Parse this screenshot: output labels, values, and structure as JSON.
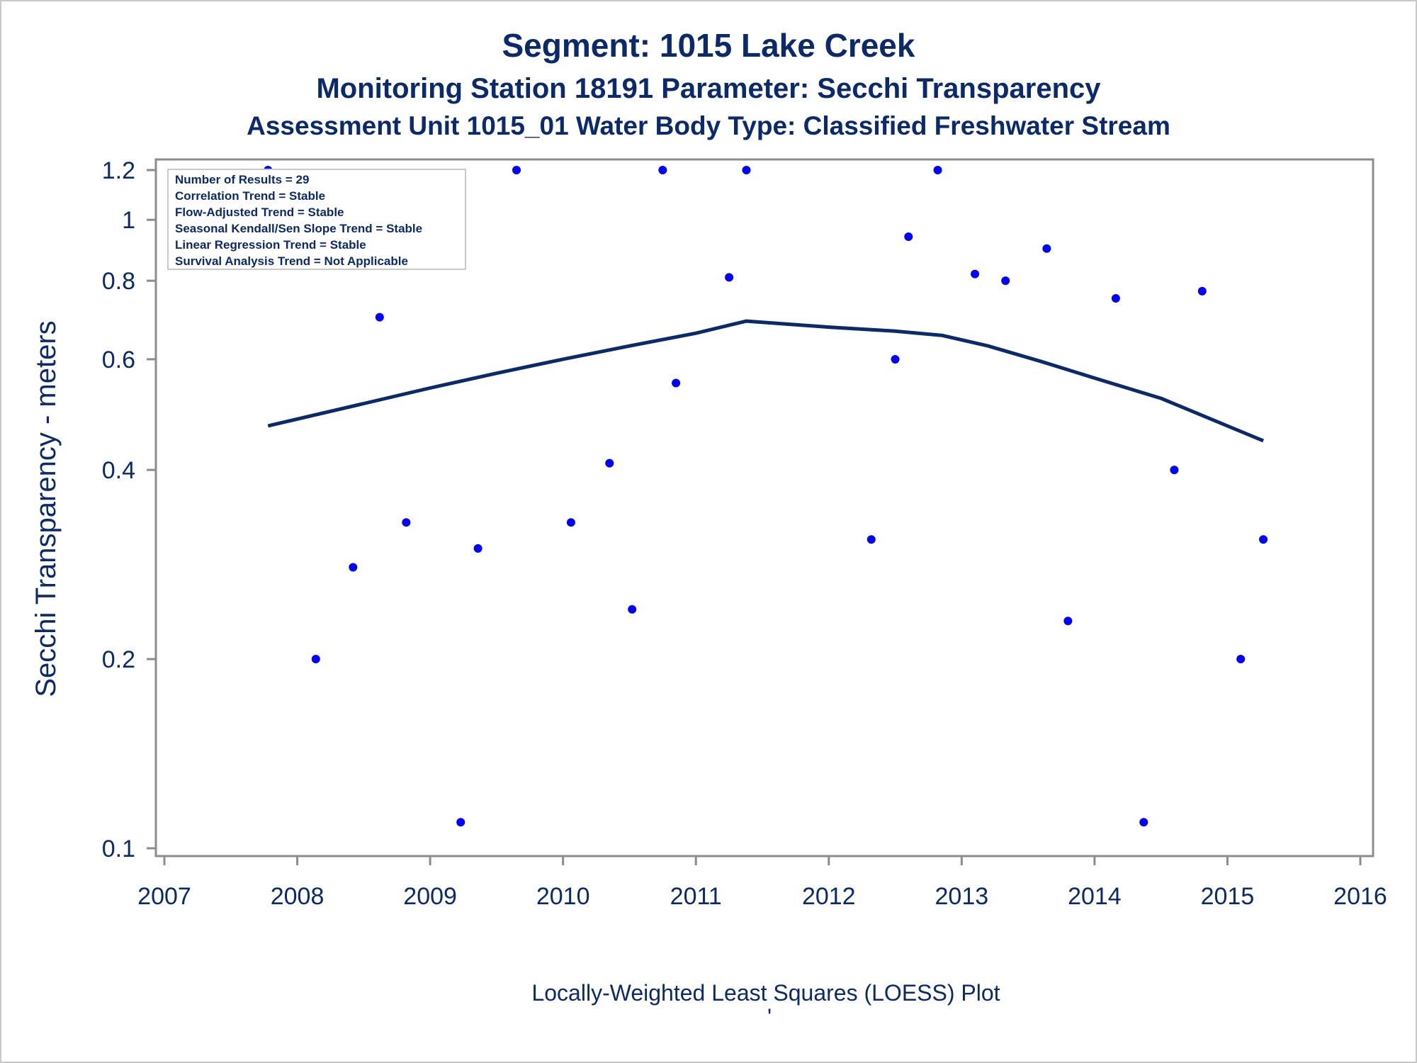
{
  "chart_data": {
    "type": "scatter",
    "title": "Segment: 1015  Lake Creek",
    "subtitle": "Monitoring Station 18191 Parameter: Secchi Transparency",
    "subtitle2": "Assessment Unit 1015_01   Water Body Type: Classified Freshwater Stream",
    "xlabel": "",
    "ylabel": "Secchi Transparency - meters",
    "footnote": "Locally-Weighted Least Squares (LOESS) Plot",
    "footnote_mark": "'",
    "y_scale": "log",
    "xlim": [
      2007,
      2016
    ],
    "ylim": [
      0.1,
      1.2
    ],
    "x_ticks": [
      2007,
      2008,
      2009,
      2010,
      2011,
      2012,
      2013,
      2014,
      2015,
      2016
    ],
    "x_tick_labels": [
      "2007",
      "2008",
      "2009",
      "2010",
      "2011",
      "2012",
      "2013",
      "2014",
      "2015",
      "2016"
    ],
    "y_ticks": [
      0.1,
      0.2,
      0.4,
      0.6,
      0.8,
      1.0,
      1.2
    ],
    "y_tick_labels": [
      "0.1",
      "0.2",
      "0.4",
      "0.6",
      "0.8",
      "1",
      "1.2"
    ],
    "grid": false,
    "legend_box": {
      "placement": "top-left",
      "lines": [
        "Number of Results = 29",
        "Correlation Trend = Stable",
        "Flow-Adjusted Trend = Stable",
        "Seasonal Kendall/Sen Slope Trend = Stable",
        "Linear Regression Trend = Stable",
        "Survival Analysis Trend = Not Applicable"
      ]
    },
    "colors": {
      "points": "#0000ff",
      "loess": "#0b2a6b",
      "text": "#0b2a6b",
      "frame": "#8c8c8c"
    },
    "series": [
      {
        "type": "scatter",
        "x": [
          2007.78,
          2008.14,
          2008.42,
          2008.62,
          2008.82,
          2009.23,
          2009.36,
          2009.65,
          2010.06,
          2010.35,
          2010.52,
          2010.75,
          2010.85,
          2011.25,
          2011.38,
          2012.32,
          2012.5,
          2012.6,
          2012.82,
          2013.1,
          2013.33,
          2013.64,
          2013.8,
          2014.16,
          2014.37,
          2014.6,
          2014.81,
          2015.1,
          2015.27
        ],
        "y": [
          1.2,
          0.2,
          0.28,
          0.7,
          0.33,
          0.11,
          0.3,
          1.2,
          0.33,
          0.41,
          0.24,
          1.2,
          0.55,
          0.81,
          1.2,
          0.31,
          0.6,
          0.94,
          1.2,
          0.82,
          0.8,
          0.9,
          0.23,
          0.75,
          0.11,
          0.4,
          0.77,
          0.2,
          0.31
        ]
      },
      {
        "type": "line",
        "x": [
          2007.78,
          2008.5,
          2009.0,
          2009.5,
          2010.0,
          2010.5,
          2011.0,
          2011.38,
          2012.0,
          2012.5,
          2012.85,
          2013.2,
          2013.6,
          2014.0,
          2014.5,
          2015.0,
          2015.27
        ],
        "y": [
          0.47,
          0.51,
          0.54,
          0.57,
          0.6,
          0.63,
          0.66,
          0.69,
          0.675,
          0.665,
          0.655,
          0.63,
          0.595,
          0.56,
          0.52,
          0.47,
          0.445
        ]
      }
    ]
  }
}
